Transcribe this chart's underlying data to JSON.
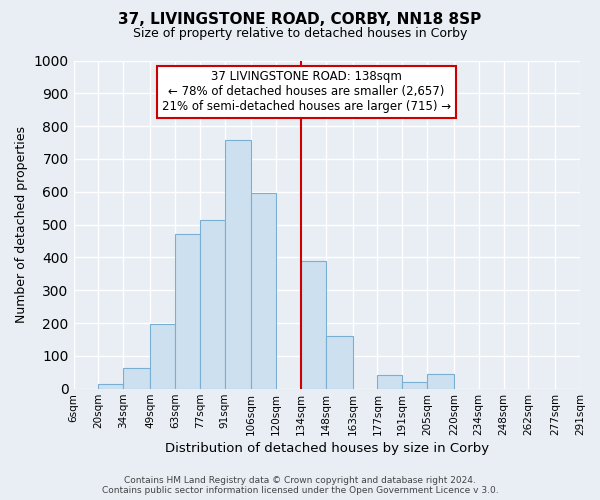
{
  "title": "37, LIVINGSTONE ROAD, CORBY, NN18 8SP",
  "subtitle": "Size of property relative to detached houses in Corby",
  "xlabel": "Distribution of detached houses by size in Corby",
  "ylabel": "Number of detached properties",
  "bin_labels": [
    "6sqm",
    "20sqm",
    "34sqm",
    "49sqm",
    "63sqm",
    "77sqm",
    "91sqm",
    "106sqm",
    "120sqm",
    "134sqm",
    "148sqm",
    "163sqm",
    "177sqm",
    "191sqm",
    "205sqm",
    "220sqm",
    "234sqm",
    "248sqm",
    "262sqm",
    "277sqm",
    "291sqm"
  ],
  "bar_values": [
    0,
    13,
    63,
    197,
    470,
    515,
    757,
    597,
    0,
    390,
    160,
    0,
    43,
    22,
    45,
    0,
    0,
    0,
    0,
    0
  ],
  "bar_color": "#cde0f0",
  "bar_edge_color": "#7aafd4",
  "property_line_label": "37 LIVINGSTONE ROAD: 138sqm",
  "annotation_line1": "← 78% of detached houses are smaller (2,657)",
  "annotation_line2": "21% of semi-detached houses are larger (715) →",
  "annotation_box_color": "#ffffff",
  "annotation_box_edge": "#cc0000",
  "vline_color": "#cc0000",
  "ylim": [
    0,
    1000
  ],
  "yticks": [
    0,
    100,
    200,
    300,
    400,
    500,
    600,
    700,
    800,
    900,
    1000
  ],
  "footer_line1": "Contains HM Land Registry data © Crown copyright and database right 2024.",
  "footer_line2": "Contains public sector information licensed under the Open Government Licence v 3.0.",
  "background_color": "#e8eef4",
  "plot_background": "#e8eef4",
  "grid_color": "#ffffff"
}
